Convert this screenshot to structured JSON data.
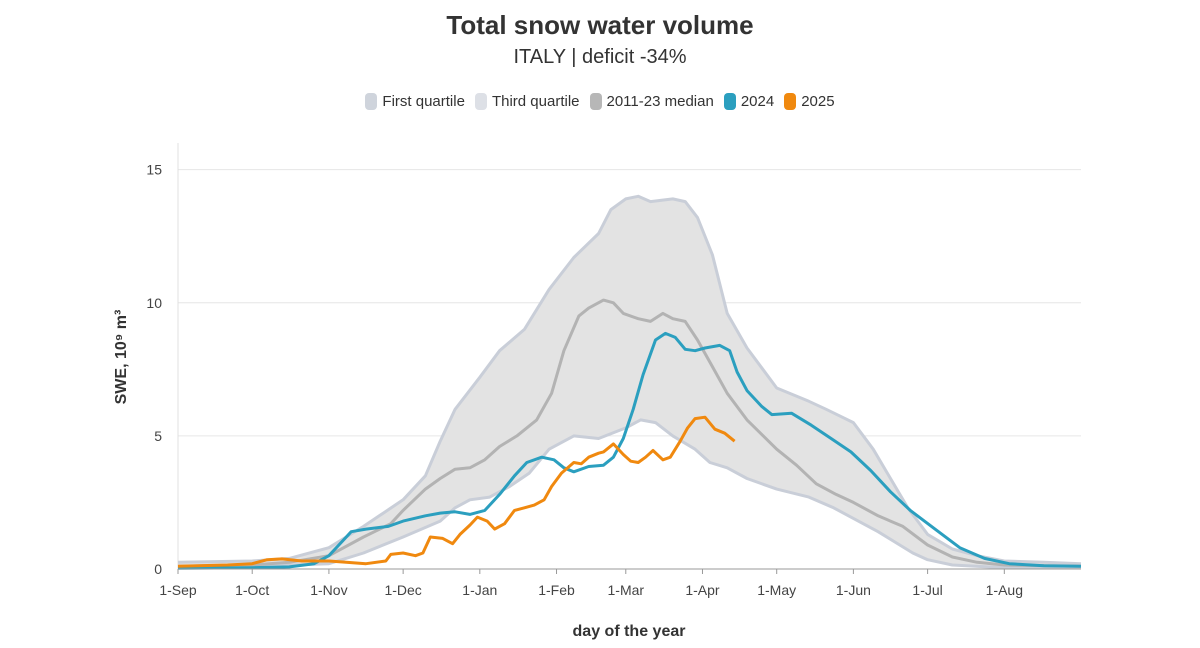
{
  "colors": {
    "band": "#e3e3e3",
    "band_edge": "#c9ced8",
    "median": "#b3b3b3",
    "y2024": "#2b9fbf",
    "y2025": "#f0890f",
    "grid": "#e6e6e6",
    "swatch_q1": "#cfd4dc",
    "swatch_q3": "#dde0e6",
    "swatch_median": "#b7b7b7"
  },
  "chart_data": {
    "type": "line",
    "title": "Total snow water volume",
    "subtitle": "ITALY | deficit -34%",
    "xlabel": "day of the year",
    "ylabel": "SWE, 10⁹ m³",
    "xlim": [
      0,
      365
    ],
    "ylim": [
      0,
      16
    ],
    "y_ticks": [
      0,
      5,
      10,
      15
    ],
    "x_ticks": [
      {
        "day": 0,
        "label": "1-Sep"
      },
      {
        "day": 30,
        "label": "1-Oct"
      },
      {
        "day": 61,
        "label": "1-Nov"
      },
      {
        "day": 91,
        "label": "1-Dec"
      },
      {
        "day": 122,
        "label": "1-Jan"
      },
      {
        "day": 153,
        "label": "1-Feb"
      },
      {
        "day": 181,
        "label": "1-Mar"
      },
      {
        "day": 212,
        "label": "1-Apr"
      },
      {
        "day": 242,
        "label": "1-May"
      },
      {
        "day": 273,
        "label": "1-Jun"
      },
      {
        "day": 303,
        "label": "1-Jul"
      },
      {
        "day": 334,
        "label": "1-Aug"
      }
    ],
    "legend": [
      {
        "name": "First quartile",
        "color_key": "swatch_q1"
      },
      {
        "name": "Third quartile",
        "color_key": "swatch_q3"
      },
      {
        "name": "2011-23 median",
        "color_key": "swatch_median"
      },
      {
        "name": "2024",
        "color_key": "y2024"
      },
      {
        "name": "2025",
        "color_key": "y2025"
      }
    ],
    "series": [
      {
        "name": "Third quartile",
        "points": [
          [
            0,
            0.25
          ],
          [
            30,
            0.3
          ],
          [
            45,
            0.4
          ],
          [
            61,
            0.8
          ],
          [
            75,
            1.6
          ],
          [
            91,
            2.6
          ],
          [
            100,
            3.5
          ],
          [
            106,
            4.8
          ],
          [
            112,
            6.0
          ],
          [
            122,
            7.2
          ],
          [
            130,
            8.2
          ],
          [
            140,
            9.0
          ],
          [
            150,
            10.5
          ],
          [
            160,
            11.7
          ],
          [
            170,
            12.6
          ],
          [
            175,
            13.5
          ],
          [
            181,
            13.9
          ],
          [
            186,
            14.0
          ],
          [
            191,
            13.8
          ],
          [
            200,
            13.9
          ],
          [
            205,
            13.8
          ],
          [
            210,
            13.2
          ],
          [
            216,
            11.8
          ],
          [
            222,
            9.6
          ],
          [
            230,
            8.3
          ],
          [
            242,
            6.8
          ],
          [
            255,
            6.3
          ],
          [
            262,
            6.0
          ],
          [
            273,
            5.5
          ],
          [
            281,
            4.5
          ],
          [
            288,
            3.4
          ],
          [
            295,
            2.3
          ],
          [
            303,
            1.3
          ],
          [
            313,
            0.75
          ],
          [
            323,
            0.5
          ],
          [
            334,
            0.3
          ],
          [
            350,
            0.25
          ],
          [
            365,
            0.2
          ]
        ]
      },
      {
        "name": "First quartile",
        "points": [
          [
            0,
            0.05
          ],
          [
            30,
            0.1
          ],
          [
            61,
            0.2
          ],
          [
            75,
            0.6
          ],
          [
            91,
            1.2
          ],
          [
            106,
            1.8
          ],
          [
            112,
            2.3
          ],
          [
            118,
            2.6
          ],
          [
            126,
            2.7
          ],
          [
            134,
            3.1
          ],
          [
            142,
            3.6
          ],
          [
            150,
            4.5
          ],
          [
            160,
            5.0
          ],
          [
            170,
            4.9
          ],
          [
            181,
            5.3
          ],
          [
            187,
            5.6
          ],
          [
            193,
            5.5
          ],
          [
            200,
            5.0
          ],
          [
            209,
            4.5
          ],
          [
            215,
            4.0
          ],
          [
            222,
            3.8
          ],
          [
            230,
            3.4
          ],
          [
            242,
            3.0
          ],
          [
            255,
            2.7
          ],
          [
            265,
            2.3
          ],
          [
            273,
            1.9
          ],
          [
            283,
            1.4
          ],
          [
            290,
            1.0
          ],
          [
            297,
            0.6
          ],
          [
            303,
            0.35
          ],
          [
            313,
            0.15
          ],
          [
            334,
            0.05
          ],
          [
            365,
            0.05
          ]
        ]
      },
      {
        "name": "2011-23 median",
        "points": [
          [
            0,
            0.1
          ],
          [
            30,
            0.15
          ],
          [
            45,
            0.25
          ],
          [
            61,
            0.5
          ],
          [
            75,
            1.2
          ],
          [
            86,
            1.7
          ],
          [
            91,
            2.2
          ],
          [
            100,
            3.0
          ],
          [
            106,
            3.4
          ],
          [
            112,
            3.75
          ],
          [
            118,
            3.8
          ],
          [
            124,
            4.1
          ],
          [
            130,
            4.6
          ],
          [
            137,
            5.0
          ],
          [
            145,
            5.6
          ],
          [
            151,
            6.6
          ],
          [
            156,
            8.2
          ],
          [
            162,
            9.5
          ],
          [
            166,
            9.8
          ],
          [
            172,
            10.1
          ],
          [
            176,
            10.0
          ],
          [
            180,
            9.6
          ],
          [
            186,
            9.4
          ],
          [
            191,
            9.3
          ],
          [
            196,
            9.6
          ],
          [
            200,
            9.4
          ],
          [
            205,
            9.3
          ],
          [
            210,
            8.6
          ],
          [
            216,
            7.6
          ],
          [
            222,
            6.6
          ],
          [
            230,
            5.6
          ],
          [
            242,
            4.5
          ],
          [
            250,
            3.9
          ],
          [
            258,
            3.2
          ],
          [
            266,
            2.8
          ],
          [
            273,
            2.5
          ],
          [
            283,
            2.0
          ],
          [
            293,
            1.6
          ],
          [
            303,
            0.9
          ],
          [
            313,
            0.45
          ],
          [
            323,
            0.25
          ],
          [
            334,
            0.15
          ],
          [
            365,
            0.1
          ]
        ]
      },
      {
        "name": "2024",
        "points": [
          [
            0,
            0.03
          ],
          [
            30,
            0.05
          ],
          [
            45,
            0.08
          ],
          [
            55,
            0.2
          ],
          [
            61,
            0.5
          ],
          [
            66,
            1.0
          ],
          [
            70,
            1.4
          ],
          [
            76,
            1.5
          ],
          [
            85,
            1.6
          ],
          [
            91,
            1.8
          ],
          [
            100,
            2.0
          ],
          [
            106,
            2.1
          ],
          [
            112,
            2.15
          ],
          [
            118,
            2.05
          ],
          [
            124,
            2.2
          ],
          [
            130,
            2.8
          ],
          [
            136,
            3.5
          ],
          [
            141,
            4.0
          ],
          [
            147,
            4.2
          ],
          [
            152,
            4.1
          ],
          [
            156,
            3.8
          ],
          [
            160,
            3.65
          ],
          [
            166,
            3.85
          ],
          [
            172,
            3.9
          ],
          [
            176,
            4.2
          ],
          [
            180,
            4.9
          ],
          [
            184,
            6.0
          ],
          [
            188,
            7.3
          ],
          [
            193,
            8.6
          ],
          [
            197,
            8.85
          ],
          [
            201,
            8.7
          ],
          [
            205,
            8.25
          ],
          [
            209,
            8.2
          ],
          [
            213,
            8.3
          ],
          [
            219,
            8.4
          ],
          [
            223,
            8.2
          ],
          [
            226,
            7.4
          ],
          [
            230,
            6.7
          ],
          [
            236,
            6.1
          ],
          [
            240,
            5.8
          ],
          [
            248,
            5.85
          ],
          [
            256,
            5.4
          ],
          [
            264,
            4.9
          ],
          [
            272,
            4.4
          ],
          [
            280,
            3.7
          ],
          [
            288,
            2.9
          ],
          [
            296,
            2.2
          ],
          [
            306,
            1.5
          ],
          [
            316,
            0.8
          ],
          [
            326,
            0.4
          ],
          [
            336,
            0.2
          ],
          [
            350,
            0.12
          ],
          [
            365,
            0.1
          ]
        ]
      },
      {
        "name": "2025",
        "points": [
          [
            0,
            0.1
          ],
          [
            20,
            0.15
          ],
          [
            30,
            0.2
          ],
          [
            36,
            0.35
          ],
          [
            42,
            0.38
          ],
          [
            50,
            0.3
          ],
          [
            61,
            0.3
          ],
          [
            68,
            0.25
          ],
          [
            76,
            0.2
          ],
          [
            84,
            0.3
          ],
          [
            86,
            0.55
          ],
          [
            91,
            0.6
          ],
          [
            96,
            0.5
          ],
          [
            99,
            0.6
          ],
          [
            102,
            1.2
          ],
          [
            107,
            1.15
          ],
          [
            111,
            0.95
          ],
          [
            114,
            1.3
          ],
          [
            118,
            1.65
          ],
          [
            121,
            1.95
          ],
          [
            125,
            1.8
          ],
          [
            128,
            1.5
          ],
          [
            132,
            1.7
          ],
          [
            136,
            2.2
          ],
          [
            140,
            2.3
          ],
          [
            144,
            2.4
          ],
          [
            148,
            2.6
          ],
          [
            151,
            3.1
          ],
          [
            155,
            3.6
          ],
          [
            160,
            4.0
          ],
          [
            163,
            3.95
          ],
          [
            166,
            4.2
          ],
          [
            170,
            4.35
          ],
          [
            172,
            4.4
          ],
          [
            176,
            4.7
          ],
          [
            180,
            4.3
          ],
          [
            183,
            4.05
          ],
          [
            186,
            4.0
          ],
          [
            189,
            4.2
          ],
          [
            192,
            4.45
          ],
          [
            196,
            4.1
          ],
          [
            199,
            4.2
          ],
          [
            203,
            4.8
          ],
          [
            206,
            5.3
          ],
          [
            209,
            5.65
          ],
          [
            213,
            5.7
          ],
          [
            217,
            5.25
          ],
          [
            221,
            5.1
          ],
          [
            225,
            4.8
          ]
        ]
      }
    ]
  }
}
